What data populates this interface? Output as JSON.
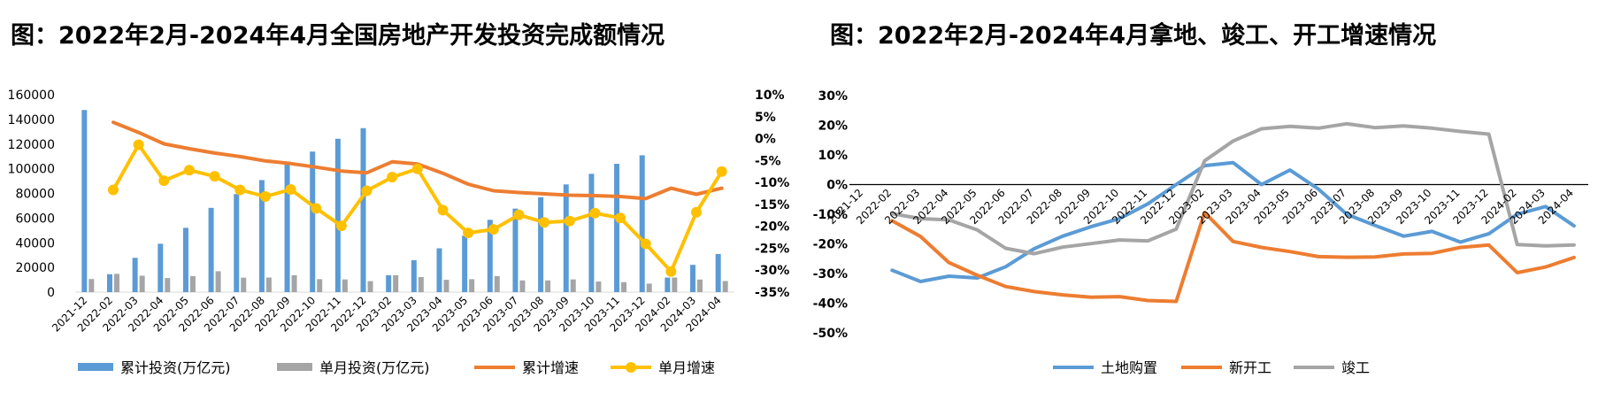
{
  "chart_data": [
    {
      "type": "bar",
      "title": "图：2022年2月-2024年4月全国房地产开发投资完成额情况",
      "categories": [
        "2021-12",
        "2022-02",
        "2022-03",
        "2022-04",
        "2022-05",
        "2022-06",
        "2022-07",
        "2022-08",
        "2022-09",
        "2022-10",
        "2022-11",
        "2022-12",
        "2023-02",
        "2023-03",
        "2023-04",
        "2023-05",
        "2023-06",
        "2023-07",
        "2023-08",
        "2023-09",
        "2023-10",
        "2023-11",
        "2023-12",
        "2024-02",
        "2024-03",
        "2024-04"
      ],
      "ylim_left": [
        0,
        160000
      ],
      "yticks_left": [
        "0",
        "20000",
        "40000",
        "60000",
        "80000",
        "100000",
        "120000",
        "140000",
        "160000"
      ],
      "ylim_right": [
        -35,
        10
      ],
      "yticks_right": [
        "-35%",
        "-30%",
        "-25%",
        "-20%",
        "-15%",
        "-10%",
        "-5%",
        "0%",
        "5%",
        "10%"
      ],
      "legend_position": "bottom",
      "grid": false,
      "series": [
        {
          "name": "累计投资(万亿元)",
          "type": "bar",
          "axis": "left",
          "color": "#5b9bd5",
          "values": [
            147600,
            14500,
            27800,
            39200,
            52100,
            68300,
            79500,
            90800,
            103600,
            113900,
            124300,
            132900,
            13700,
            25900,
            35500,
            45700,
            58600,
            67700,
            76900,
            87300,
            95900,
            104000,
            110900,
            11800,
            22100,
            30900
          ]
        },
        {
          "name": "单月投资(万亿元)",
          "type": "bar",
          "axis": "left",
          "color": "#a5a5a5",
          "values": [
            10600,
            14800,
            13300,
            11400,
            13000,
            16900,
            11700,
            11800,
            13700,
            10500,
            10300,
            8900,
            13700,
            12200,
            10000,
            10500,
            13000,
            9500,
            9500,
            10300,
            8600,
            8100,
            6900,
            11800,
            10200,
            9000
          ]
        },
        {
          "name": "累计增速",
          "type": "line",
          "axis": "right",
          "color": "#ed7d31",
          "values": [
            null,
            3.7,
            1.4,
            -1.2,
            -2.3,
            -3.3,
            -4.1,
            -5.1,
            -5.7,
            -6.5,
            -7.4,
            -7.8,
            -5.3,
            -5.8,
            -7.9,
            -10.4,
            -11.9,
            -12.3,
            -12.6,
            -12.9,
            -13,
            -13.2,
            -13.7,
            -11.3,
            -12.7,
            -11.3
          ]
        },
        {
          "name": "单月增速",
          "type": "line",
          "axis": "right",
          "color": "#ffc000",
          "marker": "circle",
          "values": [
            null,
            -11.7,
            -1.4,
            -9.6,
            -7.2,
            -8.6,
            -11.7,
            -13.2,
            -11.6,
            -15.9,
            -19.9,
            -11.9,
            -8.8,
            -6.9,
            -16.3,
            -21.5,
            -20.7,
            -17.4,
            -19.1,
            -18.8,
            -17,
            -18.1,
            -24,
            -30.3,
            -16.8,
            -7.5
          ]
        }
      ]
    },
    {
      "type": "line",
      "title": "图：2022年2月-2024年4月拿地、竣工、开工增速情况",
      "categories": [
        "2021-12",
        "2022-02",
        "2022-03",
        "2022-04",
        "2022-05",
        "2022-06",
        "2022-07",
        "2022-08",
        "2022-09",
        "2022-10",
        "2022-11",
        "2022-12",
        "2023-02",
        "2023-03",
        "2023-04",
        "2023-05",
        "2023-06",
        "2023-07",
        "2023-08",
        "2023-09",
        "2023-10",
        "2023-11",
        "2023-12",
        "2024-02",
        "2024-03",
        "2024-04"
      ],
      "ylim": [
        -50,
        30
      ],
      "yticks": [
        "-50%",
        "-40%",
        "-30%",
        "-20%",
        "-10%",
        "0%",
        "10%",
        "20%",
        "30%"
      ],
      "legend_position": "bottom",
      "grid": false,
      "series": [
        {
          "name": "土地购置",
          "color": "#5b9bd5",
          "values": [
            null,
            -28.9,
            -32.7,
            -30.9,
            -31.5,
            -27.7,
            -21.6,
            -17.4,
            -14.2,
            -11.5,
            -6.5,
            0,
            6.4,
            7.4,
            0,
            4.9,
            -1.5,
            -10,
            -13.8,
            -17.4,
            -15.8,
            -19.4,
            -16.6,
            -10,
            -7.4,
            -13.9
          ]
        },
        {
          "name": "新开工",
          "color": "#ed7d31",
          "values": [
            null,
            -12.2,
            -17.5,
            -26.3,
            -30.6,
            -34.4,
            -36.1,
            -37.2,
            -38,
            -37.8,
            -39.1,
            -39.4,
            -9.4,
            -19.2,
            -21.2,
            -22.6,
            -24.3,
            -24.5,
            -24.4,
            -23.4,
            -23.2,
            -21.2,
            -20.4,
            -29.7,
            -27.8,
            -24.6
          ]
        },
        {
          "name": "竣工",
          "color": "#a5a5a5",
          "values": [
            null,
            -9.8,
            -11.5,
            -11.9,
            -15.3,
            -21.5,
            -23.3,
            -21.1,
            -19.9,
            -18.7,
            -19,
            -15,
            8,
            14.7,
            18.8,
            19.6,
            19,
            20.5,
            19.2,
            19.8,
            19,
            17.9,
            17,
            -20.2,
            -20.7,
            -20.4
          ]
        }
      ]
    }
  ]
}
